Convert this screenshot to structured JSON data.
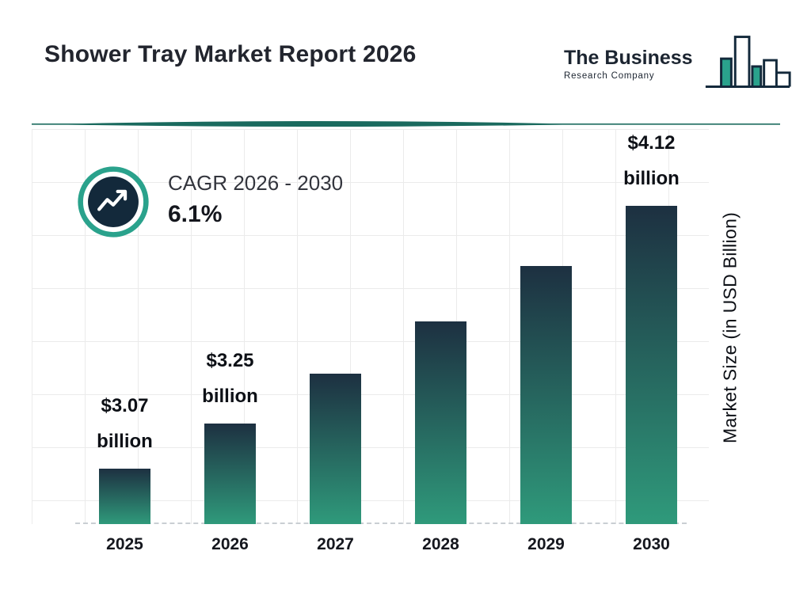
{
  "title": "Shower Tray Market Report 2026",
  "logo": {
    "line1": "The Business",
    "line2": "Research Company"
  },
  "cagr": {
    "label": "CAGR 2026 - 2030",
    "value": "6.1%"
  },
  "colors": {
    "bar_top": "#1d3041",
    "bar_bottom": "#2f9a7b",
    "accent_teal": "#2aa28c",
    "navy": "#13293b",
    "divider": "#1a6a5e",
    "grid_line": "#ebebeb",
    "baseline_dash": "#c9ced3",
    "text_dark": "#0d1016"
  },
  "chart_data": {
    "type": "bar",
    "title": "Shower Tray Market Report 2026",
    "categories": [
      "2025",
      "2026",
      "2027",
      "2028",
      "2029",
      "2030"
    ],
    "values": [
      3.07,
      3.25,
      3.45,
      3.66,
      3.88,
      4.12
    ],
    "value_labels": [
      {
        "amount": "$3.07",
        "unit": "billion"
      },
      {
        "amount": "$3.25",
        "unit": "billion"
      },
      null,
      null,
      null,
      {
        "amount": "$4.12",
        "unit": "billion"
      }
    ],
    "xlabel": "",
    "ylabel": "Market Size (in USD Billion)",
    "ylim": [
      2.85,
      4.42
    ],
    "grid": true,
    "legend": false
  }
}
